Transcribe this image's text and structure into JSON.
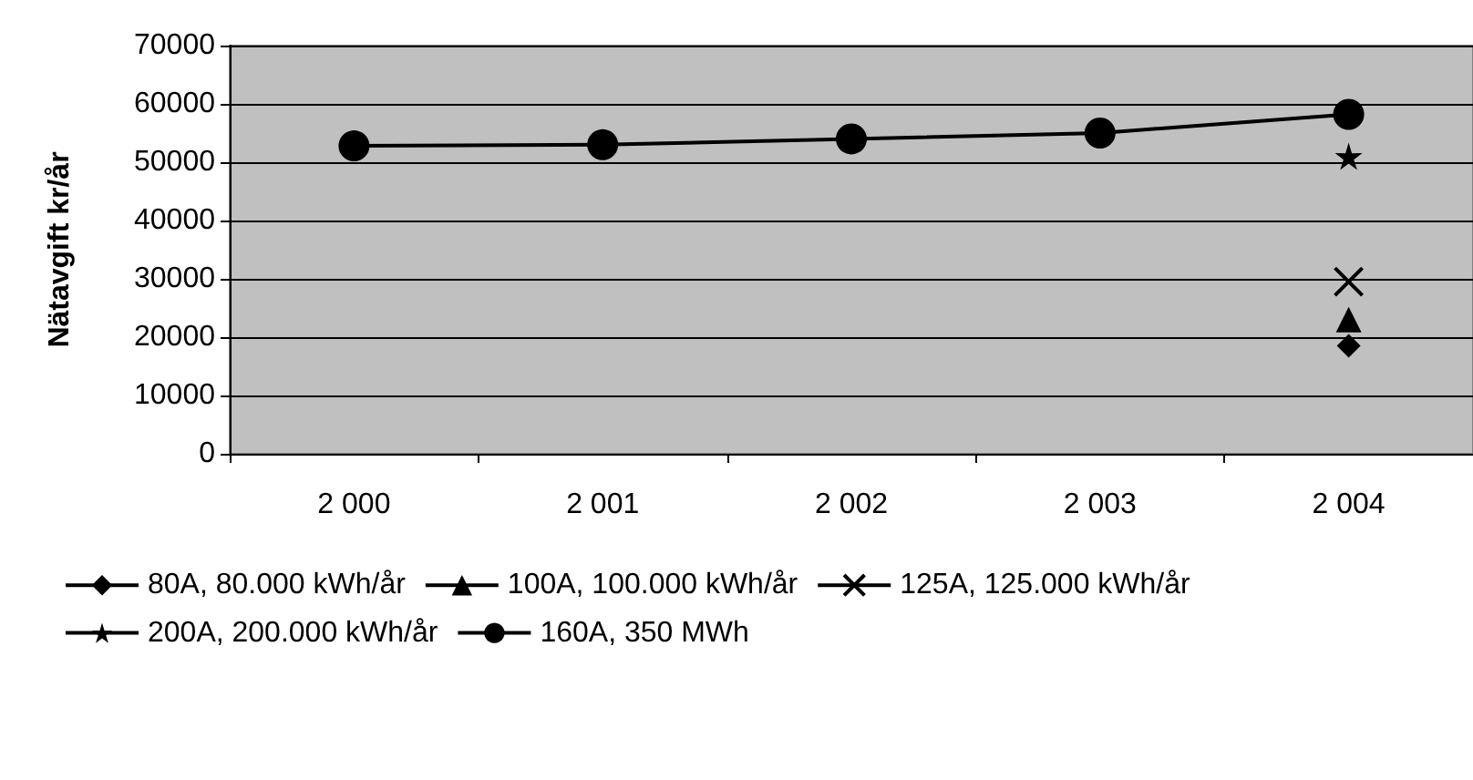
{
  "chart_data": {
    "type": "line",
    "ylabel": "Nätavgift kr/år",
    "categories": [
      "2 000",
      "2 001",
      "2 002",
      "2 003",
      "2 004"
    ],
    "ylim": [
      0,
      70000
    ],
    "yticks": [
      0,
      10000,
      20000,
      30000,
      40000,
      50000,
      60000,
      70000
    ],
    "grid": "y",
    "legend": "bottom",
    "line_style": "solid",
    "series": [
      {
        "name": "80A, 80.000 kWh/år",
        "color": "#000000",
        "marker": "diamond",
        "values": [
          null,
          null,
          null,
          null,
          18500
        ]
      },
      {
        "name": "100A, 100.000 kWh/år",
        "color": "#000000",
        "marker": "triangle",
        "values": [
          null,
          null,
          null,
          null,
          23000
        ]
      },
      {
        "name": "125A, 125.000 kWh/år",
        "color": "#000000",
        "marker": "cross",
        "values": [
          null,
          null,
          null,
          null,
          29500
        ]
      },
      {
        "name": "200A, 200.000 kWh/år",
        "color": "#000000",
        "marker": "star",
        "values": [
          null,
          null,
          null,
          null,
          51000
        ]
      },
      {
        "name": "160A, 350 MWh",
        "color": "#000000",
        "marker": "circle",
        "values": [
          52800,
          53000,
          54000,
          55000,
          58200
        ]
      }
    ]
  }
}
